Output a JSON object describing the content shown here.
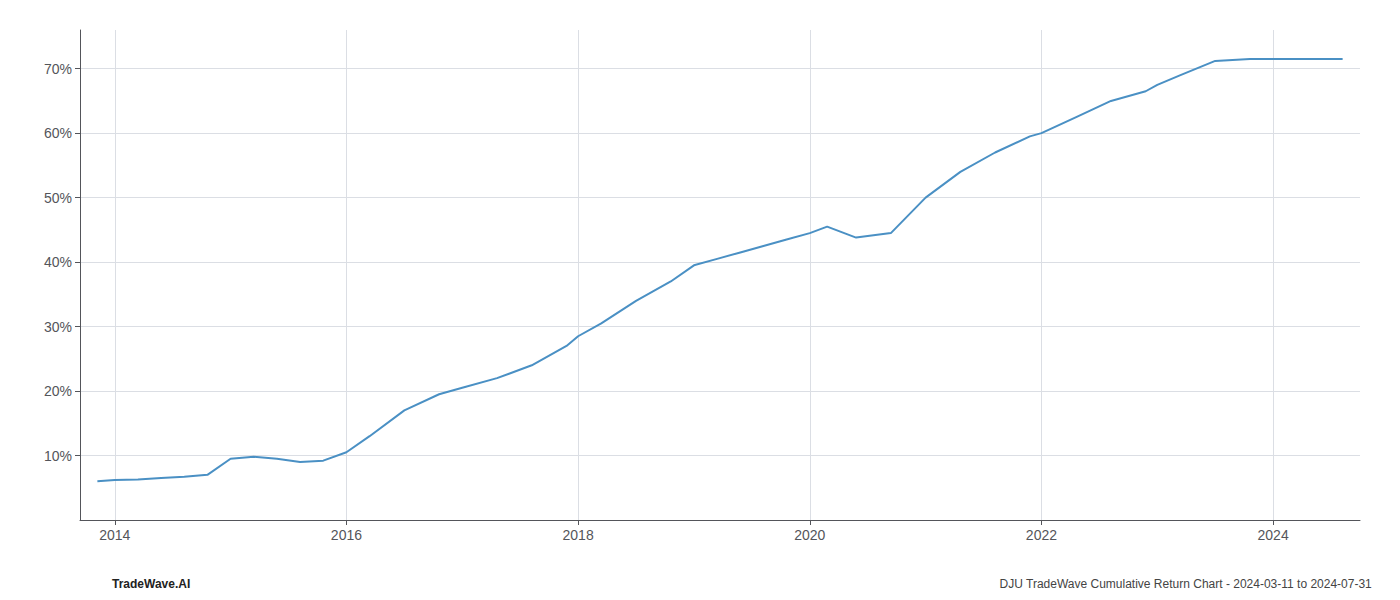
{
  "chart_data": {
    "type": "line",
    "color": "#4a90c4",
    "grid": true,
    "x": [
      2013.85,
      2014.0,
      2014.2,
      2014.4,
      2014.6,
      2014.8,
      2015.0,
      2015.2,
      2015.4,
      2015.6,
      2015.8,
      2016.0,
      2016.2,
      2016.5,
      2016.8,
      2017.0,
      2017.3,
      2017.6,
      2017.9,
      2018.0,
      2018.2,
      2018.5,
      2018.8,
      2019.0,
      2019.2,
      2019.4,
      2019.6,
      2019.8,
      2020.0,
      2020.15,
      2020.4,
      2020.7,
      2021.0,
      2021.3,
      2021.6,
      2021.9,
      2022.0,
      2022.3,
      2022.6,
      2022.9,
      2023.0,
      2023.2,
      2023.5,
      2023.8,
      2024.0,
      2024.3,
      2024.6
    ],
    "values": [
      6.0,
      6.2,
      6.3,
      6.5,
      6.7,
      7.0,
      9.5,
      9.8,
      9.5,
      9.0,
      9.2,
      10.5,
      13.0,
      17.0,
      19.5,
      20.5,
      22.0,
      24.0,
      27.0,
      28.5,
      30.5,
      34.0,
      37.0,
      39.5,
      40.5,
      41.5,
      42.5,
      43.5,
      44.5,
      45.5,
      43.8,
      44.5,
      50.0,
      54.0,
      57.0,
      59.5,
      60.0,
      62.5,
      65.0,
      66.5,
      67.5,
      69.0,
      71.2,
      71.5,
      71.5,
      71.5,
      71.5
    ],
    "xlim": [
      2013.7,
      2024.75
    ],
    "ylim": [
      0,
      76
    ],
    "xticks": [
      2014,
      2016,
      2018,
      2020,
      2022,
      2024
    ],
    "yticks": [
      {
        "value": 10,
        "label": "10%"
      },
      {
        "value": 20,
        "label": "20%"
      },
      {
        "value": 30,
        "label": "30%"
      },
      {
        "value": 40,
        "label": "40%"
      },
      {
        "value": 50,
        "label": "50%"
      },
      {
        "value": 60,
        "label": "60%"
      },
      {
        "value": 70,
        "label": "70%"
      }
    ],
    "annotations": [
      "TradeWave.AI",
      "DJU TradeWave Cumulative Return Chart - 2024-03-11 to 2024-07-31"
    ]
  }
}
